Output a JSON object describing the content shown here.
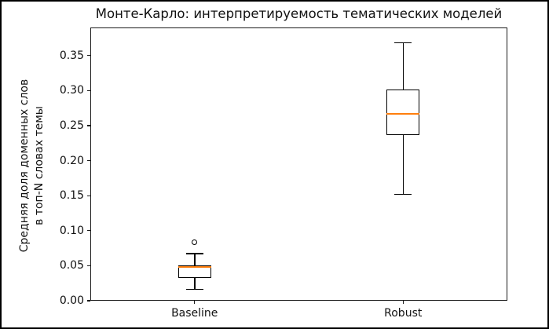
{
  "title": "Монте-Карло: интерпретируемость тематических моделей",
  "ylabel": {
    "line1": "Средняя доля доменных слов",
    "line2": "в топ-N словах темы"
  },
  "chart_data": {
    "type": "boxplot",
    "title": "Монте-Карло: интерпретируемость тематических моделей",
    "ylabel": "Средняя доля доменных слов\nв топ-N словах темы",
    "xlabel": "",
    "categories": [
      "Baseline",
      "Robust"
    ],
    "ylim": [
      0,
      0.39
    ],
    "yticks": [
      0.0,
      0.05,
      0.1,
      0.15,
      0.2,
      0.25,
      0.3,
      0.35
    ],
    "ytick_decimals": 2,
    "grid": false,
    "legend_position": "none",
    "series": [
      {
        "name": "Baseline",
        "whislo": 0.016,
        "q1": 0.033,
        "med": 0.048,
        "q3": 0.05,
        "whishi": 0.067,
        "fliers": [
          0.083
        ]
      },
      {
        "name": "Robust",
        "whislo": 0.152,
        "q1": 0.236,
        "med": 0.267,
        "q3": 0.301,
        "whishi": 0.368,
        "fliers": []
      }
    ],
    "colors": {
      "box_line": "#000000",
      "median_line": "#ff7f0e",
      "background": "#ffffff",
      "frame": "#000000"
    }
  }
}
